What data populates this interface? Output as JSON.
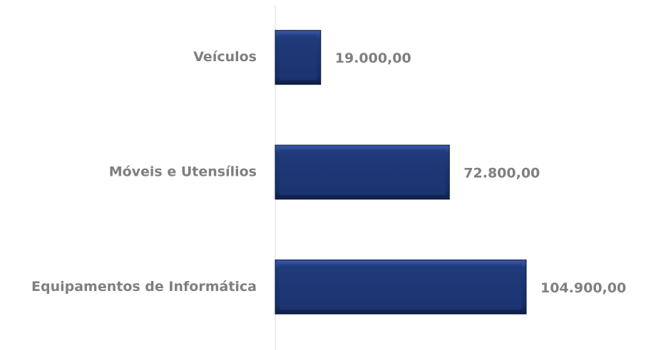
{
  "chart_data": {
    "type": "bar",
    "orientation": "horizontal",
    "categories": [
      "Veículos",
      "Móveis e Utensílios",
      "Equipamentos de Informática"
    ],
    "values": [
      19000,
      72800,
      104900
    ],
    "value_labels": [
      "19.000,00",
      "72.800,00",
      "104.900,00"
    ],
    "color": "#1f3a7a",
    "grid": false
  }
}
